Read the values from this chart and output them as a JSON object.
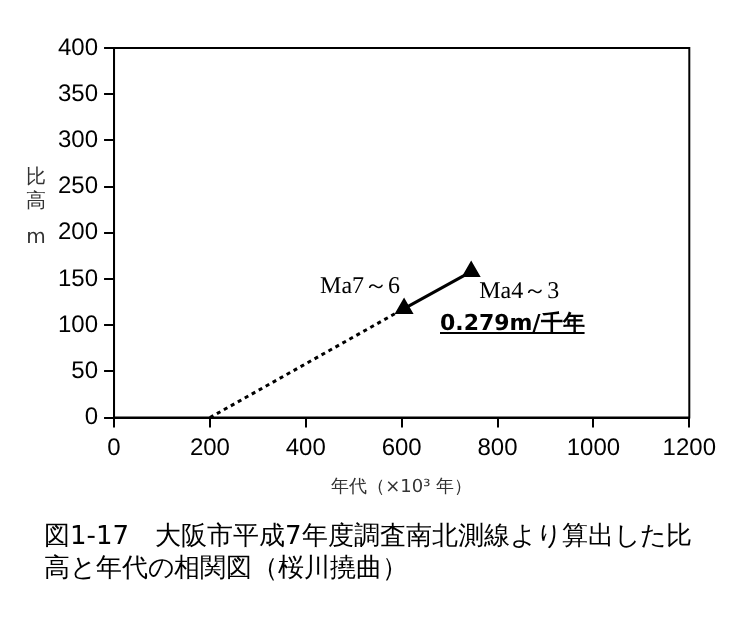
{
  "chart_data": {
    "type": "line",
    "title": "図1-17　大阪市平成7年度調査南北測線より算出した比高と年代の相関図（桜川撓曲）",
    "xlabel": "年代（×10³ 年）",
    "ylabel": "比高 m",
    "series": [
      {
        "x": [
          200,
          605
        ],
        "values": [
          0,
          118
        ],
        "color": "#000000",
        "line_style": "dotted"
      },
      {
        "x": [
          605,
          745
        ],
        "values": [
          118,
          158
        ],
        "color": "#000000",
        "marker": "triangle",
        "line_style": "solid"
      }
    ],
    "annotations": [
      {
        "text": "Ma7～6",
        "x": 605,
        "y": 118
      },
      {
        "text": "Ma4～3",
        "x": 745,
        "y": 158
      },
      "0.279m/千年"
    ],
    "xlim": [
      0,
      1200
    ],
    "xticks": [
      0,
      200,
      400,
      600,
      800,
      1000,
      1200
    ],
    "ylim": [
      0,
      400
    ],
    "yticks": [
      0,
      50,
      100,
      150,
      200,
      250,
      300,
      350,
      400
    ],
    "grid": false,
    "legend": false
  }
}
